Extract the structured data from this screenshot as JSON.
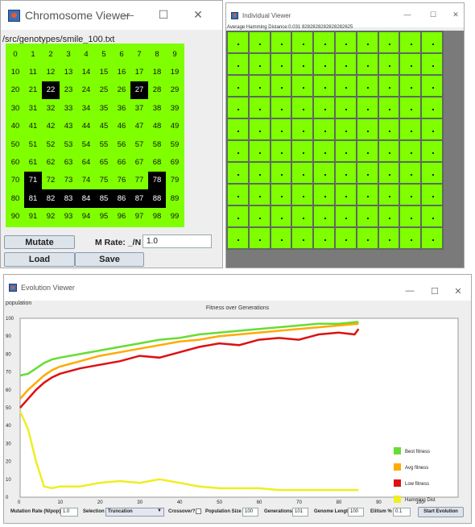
{
  "chromosome_viewer": {
    "title": "Chromosome Viewer",
    "path": "/src/genotypes/smile_100.txt",
    "cells": [
      "0",
      "1",
      "2",
      "3",
      "4",
      "5",
      "6",
      "7",
      "8",
      "9",
      "10",
      "11",
      "12",
      "13",
      "14",
      "15",
      "16",
      "17",
      "18",
      "19",
      "20",
      "21",
      "22",
      "23",
      "24",
      "25",
      "26",
      "27",
      "28",
      "29",
      "30",
      "31",
      "32",
      "33",
      "34",
      "35",
      "36",
      "37",
      "38",
      "39",
      "40",
      "41",
      "42",
      "43",
      "44",
      "45",
      "46",
      "47",
      "48",
      "49",
      "50",
      "51",
      "52",
      "53",
      "54",
      "55",
      "56",
      "57",
      "58",
      "59",
      "60",
      "61",
      "62",
      "63",
      "64",
      "65",
      "66",
      "67",
      "68",
      "69",
      "70",
      "71",
      "72",
      "73",
      "74",
      "75",
      "76",
      "77",
      "78",
      "79",
      "80",
      "81",
      "82",
      "83",
      "84",
      "85",
      "86",
      "87",
      "88",
      "89",
      "90",
      "91",
      "92",
      "93",
      "94",
      "95",
      "96",
      "97",
      "98",
      "99"
    ],
    "black_cells": [
      22,
      27,
      71,
      78,
      81,
      82,
      83,
      84,
      85,
      86,
      87,
      88
    ],
    "mutate_label": "Mutate",
    "mrate_label": "M Rate: _/N",
    "mrate_value": "1.0",
    "load_label": "Load",
    "save_label": "Save",
    "minimize": "—",
    "maximize": "☐",
    "close": "✕"
  },
  "individual_viewer": {
    "title": "Individual Viewer",
    "hamming_label": "Average Hamming Distance:0.031 8282828282828282625",
    "minimize": "—",
    "maximize": "☐",
    "close": "✕"
  },
  "evolution_viewer": {
    "title": "Evolution Viewer",
    "population_label": "population",
    "chart_title": "Fitness over Generations",
    "minimize": "—",
    "maximize": "☐",
    "close": "✕",
    "controls": {
      "mutation_rate_label": "Mutation Rate (N/pop)",
      "mutation_rate_value": "1.0",
      "selection_label": "Selection",
      "selection_value": "Truncation",
      "crossover_label": "Crossover?",
      "population_size_label": "Population Size",
      "population_size_value": "100",
      "generations_label": "Generations",
      "generations_value": "101",
      "genome_length_label": "Genome Length",
      "genome_length_value": "100",
      "elitism_label": "Elitism %",
      "elitism_value": "0.1",
      "start_label": "Start Evolution"
    }
  },
  "chart_data": {
    "type": "line",
    "title": "Fitness over Generations",
    "xlim": [
      0,
      110
    ],
    "ylim": [
      0,
      100
    ],
    "x_ticks": [
      "0",
      "10",
      "20",
      "30",
      "40",
      "50",
      "60",
      "70",
      "80",
      "90",
      "100"
    ],
    "y_ticks": [
      "0",
      "10",
      "20",
      "30",
      "40",
      "50",
      "60",
      "70",
      "80",
      "90",
      "100"
    ],
    "legend_position": "right",
    "series": [
      {
        "name": "Best fitness",
        "color": "#66dd33",
        "x": [
          0,
          2,
          4,
          6,
          8,
          10,
          15,
          20,
          25,
          30,
          35,
          40,
          45,
          50,
          55,
          60,
          65,
          70,
          75,
          80,
          85
        ],
        "y": [
          68,
          69,
          72,
          75,
          77,
          78,
          80,
          82,
          84,
          86,
          88,
          89,
          91,
          92,
          93,
          94,
          95,
          96,
          97,
          97,
          98
        ]
      },
      {
        "name": "Avg fitness",
        "color": "#ffaa00",
        "x": [
          0,
          2,
          4,
          6,
          8,
          10,
          15,
          20,
          25,
          30,
          35,
          40,
          45,
          50,
          55,
          60,
          65,
          70,
          75,
          80,
          85
        ],
        "y": [
          55,
          60,
          64,
          68,
          71,
          73,
          76,
          79,
          81,
          83,
          85,
          87,
          88,
          90,
          91,
          92,
          93,
          94,
          95,
          96,
          97
        ]
      },
      {
        "name": "Low fitness",
        "color": "#dd1111",
        "x": [
          0,
          2,
          4,
          6,
          8,
          10,
          15,
          20,
          25,
          30,
          35,
          40,
          45,
          50,
          55,
          60,
          65,
          70,
          75,
          80,
          84,
          85
        ],
        "y": [
          50,
          55,
          60,
          64,
          67,
          69,
          72,
          74,
          76,
          79,
          78,
          81,
          84,
          86,
          85,
          88,
          89,
          88,
          91,
          92,
          91,
          94
        ]
      },
      {
        "name": "Hamming Dist",
        "color": "#eeee22",
        "x": [
          0,
          2,
          4,
          6,
          8,
          10,
          15,
          20,
          25,
          30,
          35,
          40,
          45,
          50,
          55,
          60,
          65,
          70,
          75,
          80,
          85
        ],
        "y": [
          48,
          38,
          20,
          6,
          5,
          6,
          6,
          8,
          9,
          8,
          10,
          8,
          6,
          5,
          5,
          5,
          4,
          4,
          4,
          4,
          4
        ]
      }
    ]
  }
}
